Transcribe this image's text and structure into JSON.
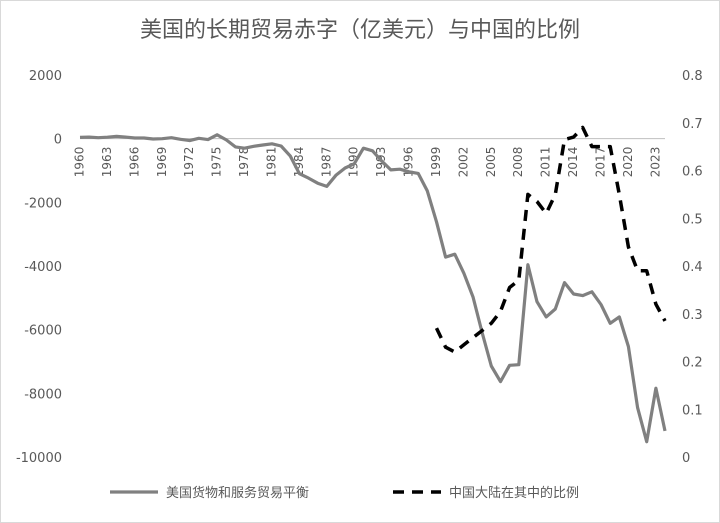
{
  "chart_data": {
    "type": "line",
    "title": "美国的长期贸易赤字（亿美元）与中国的比例",
    "y_left": {
      "min": -10000,
      "max": 2000,
      "step": 2000
    },
    "y_right": {
      "min": 0,
      "max": 0.8,
      "step": 0.1
    },
    "x_range": [
      1960,
      2024
    ],
    "x_tick_labels": [
      "1960",
      "1963",
      "1966",
      "1969",
      "1972",
      "1975",
      "1978",
      "1981",
      "1984",
      "1987",
      "1990",
      "1993",
      "1996",
      "1999",
      "2002",
      "2005",
      "2008",
      "2011",
      "2014",
      "2017",
      "2020",
      "2023"
    ],
    "legend_position": "bottom",
    "series": [
      {
        "name": "美国货物和服务贸易平衡",
        "axis": "left",
        "color": "#808080",
        "style": "solid",
        "x": [
          1960,
          1961,
          1962,
          1963,
          1964,
          1965,
          1966,
          1967,
          1968,
          1969,
          1970,
          1971,
          1972,
          1973,
          1974,
          1975,
          1976,
          1977,
          1978,
          1979,
          1980,
          1981,
          1982,
          1983,
          1984,
          1985,
          1986,
          1987,
          1988,
          1989,
          1990,
          1991,
          1992,
          1993,
          1994,
          1995,
          1996,
          1997,
          1998,
          1999,
          2000,
          2001,
          2002,
          2003,
          2004,
          2005,
          2006,
          2007,
          2008,
          2009,
          2010,
          2011,
          2012,
          2013,
          2014,
          2015,
          2016,
          2017,
          2018,
          2019,
          2020,
          2021,
          2022,
          2023,
          2024
        ],
        "y": [
          40,
          50,
          30,
          45,
          70,
          50,
          20,
          20,
          -10,
          0,
          30,
          -20,
          -60,
          10,
          -30,
          120,
          -40,
          -260,
          -300,
          -240,
          -200,
          -160,
          -230,
          -540,
          -1100,
          -1240,
          -1400,
          -1500,
          -1150,
          -920,
          -790,
          -300,
          -380,
          -700,
          -980,
          -960,
          -1040,
          -1090,
          -1640,
          -2610,
          -3720,
          -3630,
          -4230,
          -4970,
          -6100,
          -7140,
          -7630,
          -7120,
          -7100,
          -3960,
          -5120,
          -5600,
          -5350,
          -4520,
          -4880,
          -4930,
          -4810,
          -5210,
          -5800,
          -5600,
          -6530,
          -8450,
          -9520,
          -7840,
          -9180
        ]
      },
      {
        "name": "中国大陆在其中的比例",
        "axis": "right",
        "color": "#000000",
        "style": "dashed",
        "x": [
          1999,
          2000,
          2001,
          2002,
          2003,
          2004,
          2005,
          2006,
          2007,
          2008,
          2009,
          2010,
          2011,
          2012,
          2013,
          2014,
          2015,
          2016,
          2017,
          2018,
          2019,
          2020,
          2021,
          2022,
          2023,
          2024
        ],
        "y": [
          0.27,
          0.23,
          0.22,
          0.235,
          0.25,
          0.265,
          0.28,
          0.305,
          0.355,
          0.37,
          0.55,
          0.535,
          0.51,
          0.55,
          0.665,
          0.67,
          0.69,
          0.65,
          0.65,
          0.65,
          0.55,
          0.44,
          0.39,
          0.39,
          0.32,
          0.285
        ]
      }
    ]
  }
}
